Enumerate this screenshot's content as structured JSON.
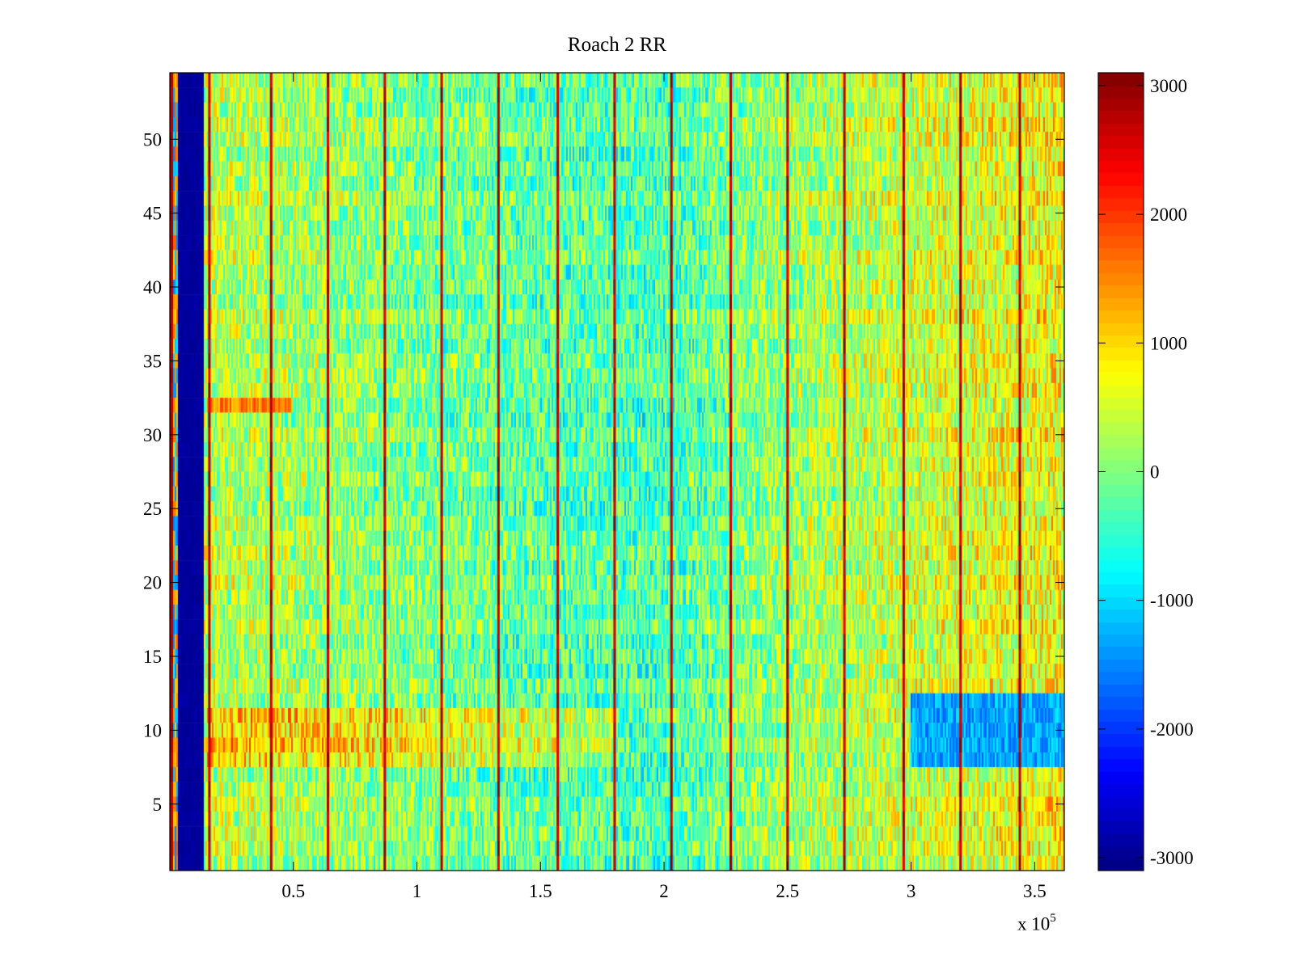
{
  "chart_data": {
    "type": "heatmap",
    "title": "Roach 2 RR",
    "xlabel": "",
    "ylabel": "",
    "x_multiplier_label": {
      "prefix": "x 10",
      "exponent": "5"
    },
    "xlim": [
      0,
      3.62
    ],
    "ylim": [
      0.5,
      54.5
    ],
    "x_ticks": [
      0.5,
      1,
      1.5,
      2,
      2.5,
      3,
      3.5
    ],
    "x_tick_labels": [
      "0.5",
      "1",
      "1.5",
      "2",
      "2.5",
      "3",
      "3.5"
    ],
    "y_ticks": [
      5,
      10,
      15,
      20,
      25,
      30,
      35,
      40,
      45,
      50
    ],
    "y_tick_labels": [
      "5",
      "10",
      "15",
      "20",
      "25",
      "30",
      "35",
      "40",
      "45",
      "50"
    ],
    "rows": 54,
    "colormap": "jet",
    "clim": [
      -3100,
      3100
    ],
    "colorbar": {
      "ticks": [
        -3000,
        -2000,
        -1000,
        0,
        1000,
        2000,
        3000
      ],
      "tick_labels": [
        "-3000",
        "-2000",
        "-1000",
        "0",
        "1000",
        "2000",
        "3000"
      ]
    },
    "features": {
      "low_value_band_x": [
        0.03,
        0.14
      ],
      "low_value_band_level": -3000,
      "vertical_spike_lines_x": [
        0.16,
        0.41,
        0.64,
        0.87,
        1.1,
        1.33,
        1.57,
        1.8,
        2.03,
        2.27,
        2.5,
        2.73,
        2.97,
        3.2,
        3.44
      ],
      "background_level_by_x": [
        {
          "x": 0.15,
          "level": 400
        },
        {
          "x": 0.8,
          "level": 100
        },
        {
          "x": 1.5,
          "level": -200
        },
        {
          "x": 2.0,
          "level": -300
        },
        {
          "x": 2.5,
          "level": 200
        },
        {
          "x": 3.0,
          "level": 500
        },
        {
          "x": 3.6,
          "level": 800
        }
      ],
      "high_region": {
        "x": [
          0.15,
          1.8
        ],
        "y": [
          7.5,
          11
        ],
        "level": 1200
      },
      "high_row": {
        "x": [
          0.15,
          0.5
        ],
        "y": [
          31.5,
          32.5
        ],
        "level": 1500
      },
      "low_region": {
        "x": [
          3.0,
          3.62
        ],
        "y": [
          7.5,
          12.5
        ],
        "level": -1300
      }
    }
  }
}
